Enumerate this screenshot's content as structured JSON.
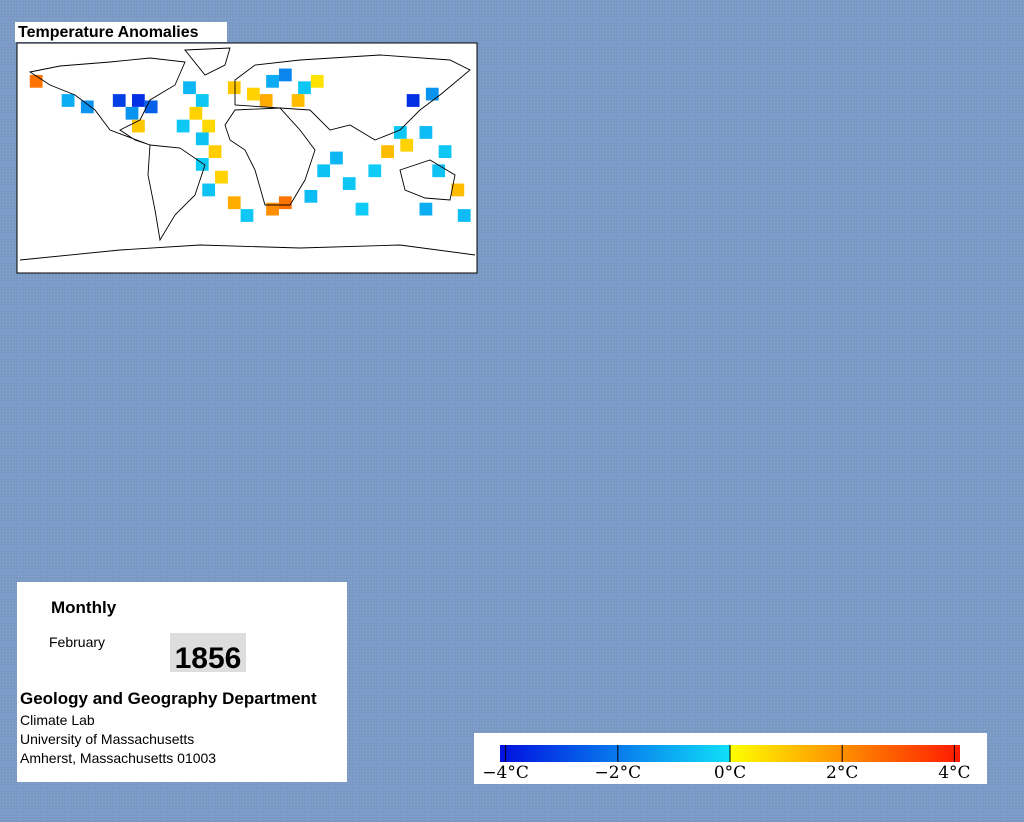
{
  "map": {
    "title": "Temperature Anomalies",
    "cells": [
      {
        "lon": -165,
        "lat": 60,
        "value": 2.5
      },
      {
        "lon": -140,
        "lat": 45,
        "value": -1.0
      },
      {
        "lon": -125,
        "lat": 40,
        "value": -1.5
      },
      {
        "lon": -100,
        "lat": 45,
        "value": -3.2
      },
      {
        "lon": -85,
        "lat": 45,
        "value": -3.5
      },
      {
        "lon": -75,
        "lat": 40,
        "value": -2.5
      },
      {
        "lon": -90,
        "lat": 35,
        "value": -1.5
      },
      {
        "lon": -85,
        "lat": 25,
        "value": 1.0
      },
      {
        "lon": -45,
        "lat": 55,
        "value": -0.8
      },
      {
        "lon": -35,
        "lat": 45,
        "value": -0.5
      },
      {
        "lon": -40,
        "lat": 35,
        "value": 0.8
      },
      {
        "lon": -50,
        "lat": 25,
        "value": -0.5
      },
      {
        "lon": -30,
        "lat": 25,
        "value": 0.7
      },
      {
        "lon": -35,
        "lat": 15,
        "value": -0.6
      },
      {
        "lon": -25,
        "lat": 5,
        "value": 0.9
      },
      {
        "lon": -35,
        "lat": -5,
        "value": -0.4
      },
      {
        "lon": -20,
        "lat": -15,
        "value": 0.8
      },
      {
        "lon": -30,
        "lat": -25,
        "value": -0.6
      },
      {
        "lon": -10,
        "lat": -35,
        "value": 1.5
      },
      {
        "lon": 0,
        "lat": -45,
        "value": -0.5
      },
      {
        "lon": -10,
        "lat": 55,
        "value": 1.0
      },
      {
        "lon": 5,
        "lat": 50,
        "value": 0.8
      },
      {
        "lon": 20,
        "lat": 60,
        "value": -1.0
      },
      {
        "lon": 30,
        "lat": 65,
        "value": -1.8
      },
      {
        "lon": 45,
        "lat": 55,
        "value": -0.5
      },
      {
        "lon": 40,
        "lat": 45,
        "value": 1.2
      },
      {
        "lon": 15,
        "lat": 45,
        "value": 1.5
      },
      {
        "lon": 55,
        "lat": 60,
        "value": 0.5
      },
      {
        "lon": 60,
        "lat": -10,
        "value": -0.6
      },
      {
        "lon": 70,
        "lat": 0,
        "value": -0.8
      },
      {
        "lon": 80,
        "lat": -20,
        "value": -0.5
      },
      {
        "lon": 50,
        "lat": -30,
        "value": -0.7
      },
      {
        "lon": 30,
        "lat": -35,
        "value": 2.5
      },
      {
        "lon": 20,
        "lat": -40,
        "value": 2.0
      },
      {
        "lon": 90,
        "lat": -40,
        "value": -0.4
      },
      {
        "lon": 130,
        "lat": 45,
        "value": -3.5
      },
      {
        "lon": 145,
        "lat": 50,
        "value": -1.5
      },
      {
        "lon": 120,
        "lat": 20,
        "value": -0.5
      },
      {
        "lon": 110,
        "lat": 5,
        "value": 1.2
      },
      {
        "lon": 125,
        "lat": 10,
        "value": 0.8
      },
      {
        "lon": 140,
        "lat": 20,
        "value": -0.7
      },
      {
        "lon": 150,
        "lat": -10,
        "value": -0.6
      },
      {
        "lon": 155,
        "lat": 5,
        "value": -0.5
      },
      {
        "lon": 165,
        "lat": -25,
        "value": 1.2
      },
      {
        "lon": 140,
        "lat": -40,
        "value": -1.0
      },
      {
        "lon": 170,
        "lat": -45,
        "value": -0.7
      },
      {
        "lon": 100,
        "lat": -10,
        "value": -0.4
      }
    ]
  },
  "info": {
    "period": "Monthly",
    "month": "February",
    "year": "1856",
    "department": "Geology and Geography Department",
    "lines": [
      "Climate Lab",
      "University of Massachusetts",
      "Amherst, Massachusetts 01003"
    ]
  },
  "colorbar": {
    "lim": [
      -4.1,
      4.1
    ],
    "ticks": [
      {
        "value": -4,
        "label": "−4°C"
      },
      {
        "value": -2,
        "label": "−2°C"
      },
      {
        "value": 0,
        "label": "0°C"
      },
      {
        "value": 2,
        "label": "2°C"
      },
      {
        "value": 4,
        "label": "4°C"
      }
    ],
    "colors": [
      "#0010e0",
      "#10e0f8",
      "#ffff00",
      "#ff1a00"
    ]
  }
}
